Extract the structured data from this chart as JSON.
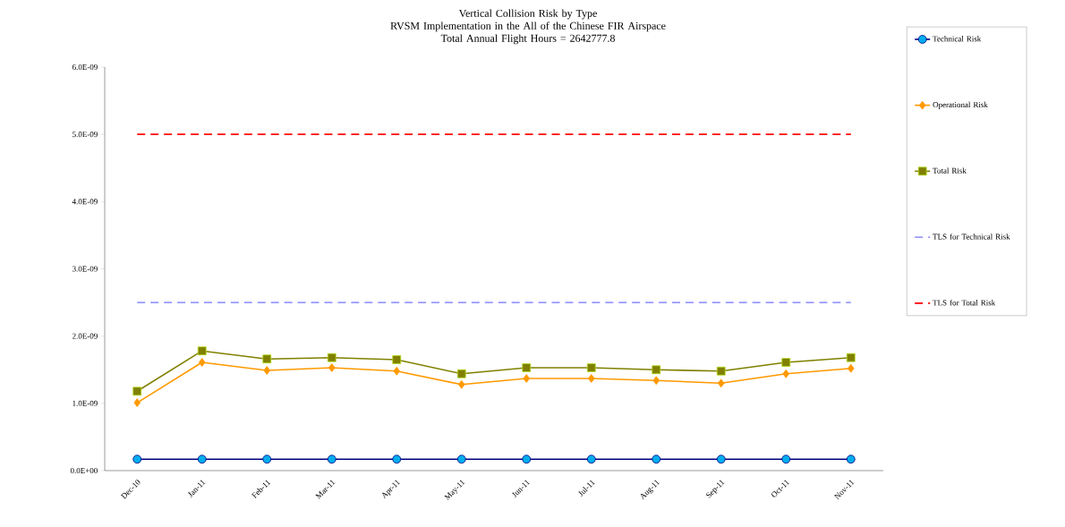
{
  "chart_data": {
    "type": "line",
    "title": "Vertical Collision Risk by Type",
    "subtitle": "RVSM Implementation in the All of the Chinese FIR Airspace\nTotal Annual Flight Hours = 2642777.8",
    "categories": [
      "Dec-10",
      "Jan-11",
      "Feb-11",
      "Mar-11",
      "Apr-11",
      "May-11",
      "Jun-11",
      "Jul-11",
      "Aug-11",
      "Sep-11",
      "Oct-11",
      "Nov-11"
    ],
    "series": [
      {
        "name": "Technical Risk",
        "color": "#000080",
        "marker": "circle",
        "values": [
          1.7e-10,
          1.7e-10,
          1.7e-10,
          1.7e-10,
          1.7e-10,
          1.7e-10,
          1.7e-10,
          1.7e-10,
          1.7e-10,
          1.7e-10,
          1.7e-10,
          1.7e-10
        ]
      },
      {
        "name": "Operational Risk",
        "color": "#ff9900",
        "marker": "diamond",
        "values": [
          1.01e-09,
          1.61e-09,
          1.49e-09,
          1.53e-09,
          1.48e-09,
          1.28e-09,
          1.37e-09,
          1.37e-09,
          1.34e-09,
          1.3e-09,
          1.44e-09,
          1.52e-09
        ]
      },
      {
        "name": "Total Risk",
        "color": "#808000",
        "marker": "square",
        "values": [
          1.18e-09,
          1.78e-09,
          1.66e-09,
          1.68e-09,
          1.65e-09,
          1.44e-09,
          1.53e-09,
          1.53e-09,
          1.5e-09,
          1.48e-09,
          1.61e-09,
          1.68e-09
        ]
      }
    ],
    "ref_lines": [
      {
        "axis": "y",
        "value": 2.5e-09,
        "label": "TLS for Technical Risk",
        "color": "#9999ff",
        "line_style": "dashed"
      },
      {
        "axis": "y",
        "value": 5e-09,
        "label": "TLS for Total Risk",
        "color": "#ff0000",
        "line_style": "dashed"
      }
    ],
    "ylim": [
      0,
      6e-09
    ],
    "yticks": [
      {
        "value": 0,
        "label": "0.0E+00"
      },
      {
        "value": 1e-09,
        "label": "1.0E-09"
      },
      {
        "value": 2e-09,
        "label": "2.0E-09"
      },
      {
        "value": 3e-09,
        "label": "3.0E-09"
      },
      {
        "value": 4e-09,
        "label": "4.0E-09"
      },
      {
        "value": 5e-09,
        "label": "5.0E-09"
      },
      {
        "value": 6e-09,
        "label": "6.0E-09"
      }
    ],
    "grid": false,
    "legend": "right"
  }
}
